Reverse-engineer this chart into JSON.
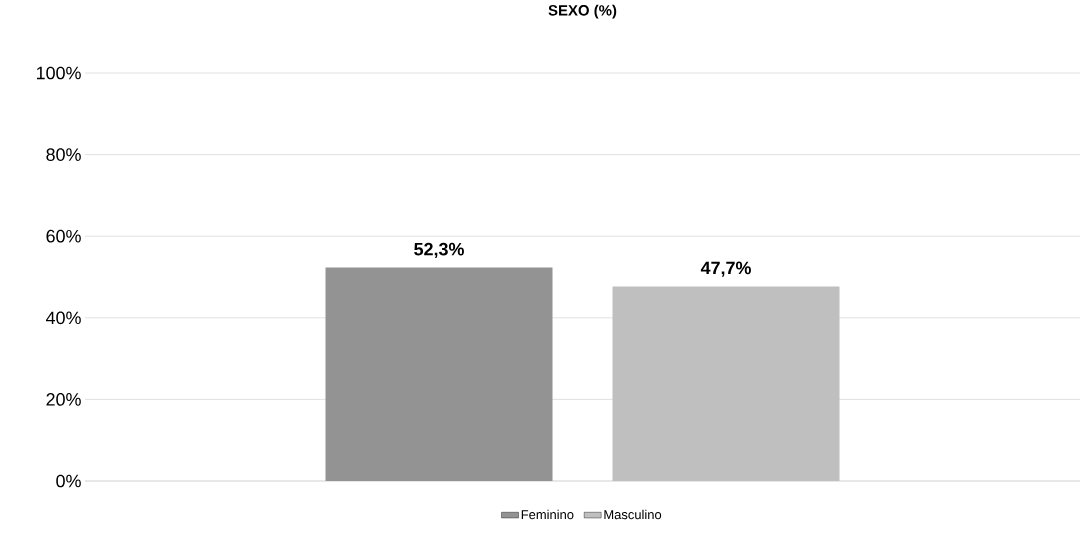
{
  "chart_data": {
    "type": "bar",
    "title": "SEXO (%)",
    "categories": [
      null
    ],
    "series": [
      {
        "name": "Feminino",
        "color": "#939393",
        "values": [
          52.3
        ],
        "value_labels": [
          "52,3%"
        ]
      },
      {
        "name": "Masculino",
        "color": "#bfbfbf",
        "values": [
          47.7
        ],
        "value_labels": [
          "47,7%"
        ]
      }
    ],
    "ylim": [
      0,
      100
    ],
    "yticks": [
      {
        "value": 0,
        "label": "0%"
      },
      {
        "value": 20,
        "label": "20%"
      },
      {
        "value": 40,
        "label": "40%"
      },
      {
        "value": 60,
        "label": "60%"
      },
      {
        "value": 80,
        "label": "80%"
      },
      {
        "value": 100,
        "label": "100%"
      }
    ],
    "grid": "y",
    "legend": "bottom"
  }
}
